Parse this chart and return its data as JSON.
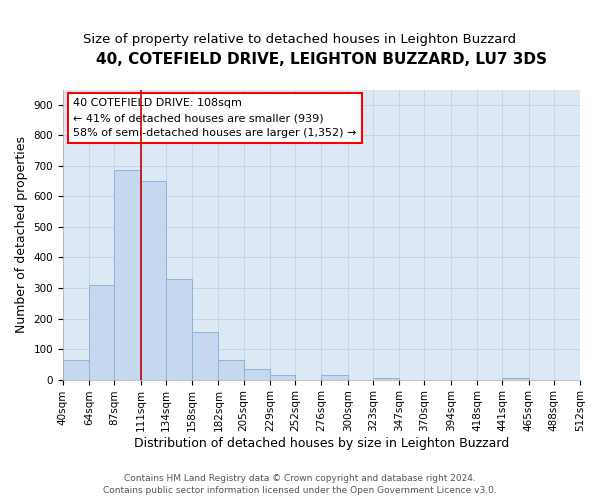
{
  "title": "40, COTEFIELD DRIVE, LEIGHTON BUZZARD, LU7 3DS",
  "subtitle": "Size of property relative to detached houses in Leighton Buzzard",
  "xlabel": "Distribution of detached houses by size in Leighton Buzzard",
  "ylabel": "Number of detached properties",
  "footer_line1": "Contains HM Land Registry data © Crown copyright and database right 2024.",
  "footer_line2": "Contains public sector information licensed under the Open Government Licence v3.0.",
  "bar_color": "#c5d8ef",
  "bar_edge_color": "#8ab4d8",
  "background_color": "#dce9f5",
  "annotation_line1": "40 COTEFIELD DRIVE: 108sqm",
  "annotation_line2": "← 41% of detached houses are smaller (939)",
  "annotation_line3": "58% of semi-detached houses are larger (1,352) →",
  "vline_x": 111,
  "vline_color": "#cc0000",
  "bins": [
    40,
    64,
    87,
    111,
    134,
    158,
    182,
    205,
    229,
    252,
    276,
    300,
    323,
    347,
    370,
    394,
    418,
    441,
    465,
    488,
    512
  ],
  "bin_labels": [
    "40sqm",
    "64sqm",
    "87sqm",
    "111sqm",
    "134sqm",
    "158sqm",
    "182sqm",
    "205sqm",
    "229sqm",
    "252sqm",
    "276sqm",
    "300sqm",
    "323sqm",
    "347sqm",
    "370sqm",
    "394sqm",
    "418sqm",
    "441sqm",
    "465sqm",
    "488sqm",
    "512sqm"
  ],
  "values": [
    65,
    310,
    685,
    650,
    330,
    155,
    65,
    35,
    15,
    0,
    15,
    0,
    5,
    0,
    0,
    0,
    0,
    5,
    0,
    0,
    0
  ],
  "ylim": [
    0,
    950
  ],
  "yticks": [
    0,
    100,
    200,
    300,
    400,
    500,
    600,
    700,
    800,
    900
  ],
  "grid_color": "#c5d5e8",
  "title_fontsize": 11,
  "subtitle_fontsize": 9.5,
  "axis_label_fontsize": 9,
  "tick_fontsize": 7.5,
  "footer_fontsize": 6.5
}
